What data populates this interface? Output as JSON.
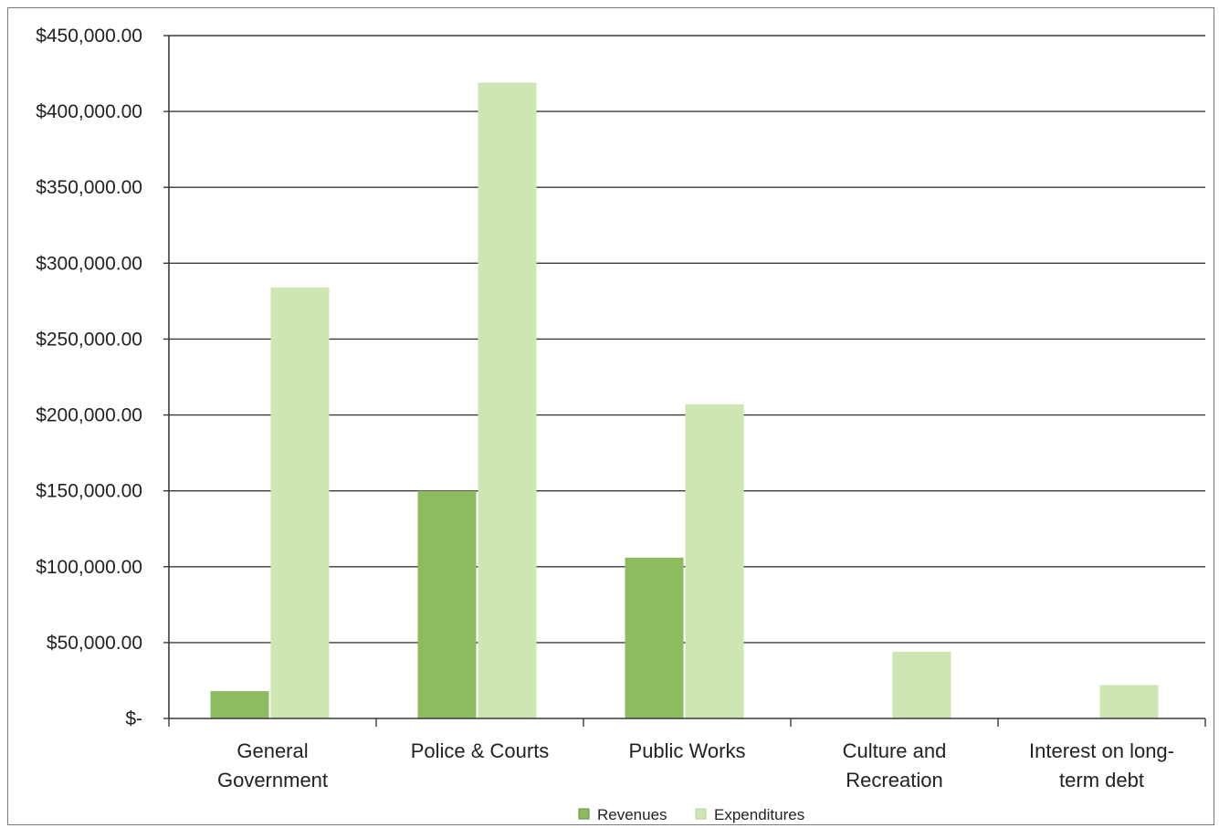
{
  "chart_data": {
    "type": "bar",
    "title": "",
    "xlabel": "",
    "ylabel": "",
    "categories": [
      [
        "General",
        "Government"
      ],
      [
        "Police & Courts"
      ],
      [
        "Public Works"
      ],
      [
        "Culture and",
        "Recreation"
      ],
      [
        "Interest on long-",
        "term debt"
      ]
    ],
    "series": [
      {
        "name": "Revenues",
        "color": "#8dbb5f",
        "values": [
          18000,
          150000,
          106000,
          0,
          0
        ]
      },
      {
        "name": "Expenditures",
        "color": "#cde6b3",
        "values": [
          284000,
          419000,
          207000,
          44000,
          22000
        ]
      }
    ],
    "ylim": [
      0,
      450000
    ],
    "y_ticks": [
      {
        "value": 0,
        "label": "$-"
      },
      {
        "value": 50000,
        "label": "$50,000.00"
      },
      {
        "value": 100000,
        "label": "$100,000.00"
      },
      {
        "value": 150000,
        "label": "$150,000.00"
      },
      {
        "value": 200000,
        "label": "$200,000.00"
      },
      {
        "value": 250000,
        "label": "$250,000.00"
      },
      {
        "value": 300000,
        "label": "$300,000.00"
      },
      {
        "value": 350000,
        "label": "$350,000.00"
      },
      {
        "value": 400000,
        "label": "$400,000.00"
      },
      {
        "value": 450000,
        "label": "$450,000.00"
      }
    ],
    "grid": true,
    "legend_position": "bottom"
  }
}
